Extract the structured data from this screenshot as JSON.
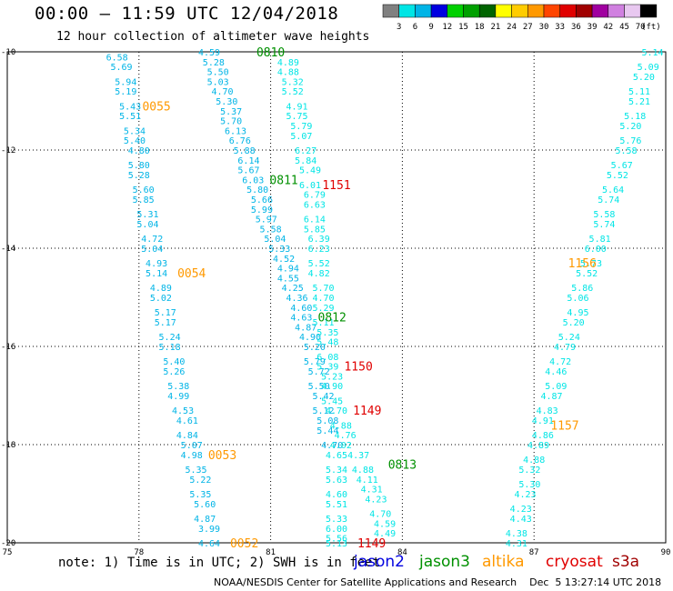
{
  "header": {
    "title": "00:00 – 11:59 UTC 12/04/2018",
    "subtitle": "12 hour collection of altimeter wave heights"
  },
  "colorbar": {
    "unit": "(ft)",
    "labels": [
      "3",
      "6",
      "9",
      "12",
      "15",
      "18",
      "21",
      "24",
      "27",
      "30",
      "33",
      "36",
      "39",
      "42",
      "45",
      "70"
    ],
    "colors": [
      "#808080",
      "#00e5e5",
      "#00b4e6",
      "#0000e0",
      "#00d000",
      "#00a000",
      "#006400",
      "#ffff00",
      "#ffcc00",
      "#ff9900",
      "#ff4500",
      "#e00000",
      "#a00000",
      "#a000a0",
      "#d080e0",
      "#e8c8f0",
      "#000000"
    ]
  },
  "footer": {
    "note": "note: 1) Time is in UTC; 2) SWH is in feet",
    "satellites": [
      {
        "name": "jason2",
        "color": "#0000e0"
      },
      {
        "name": "jason3",
        "color": "#009000"
      },
      {
        "name": "altika",
        "color": "#ff9900"
      },
      {
        "name": "cryosat",
        "color": "#e00000"
      },
      {
        "name": "s3a",
        "color": "#a00000"
      }
    ],
    "credit": "NOAA/NESDIS Center for Satellite Applications and Research    Dec  5 13:27:14 UTC 2018"
  },
  "chart_data": {
    "type": "scatter",
    "title": "00:00 – 11:59 UTC 12/04/2018",
    "subtitle": "12 hour collection of altimeter wave heights",
    "x_ticks": [
      75,
      78,
      81,
      84,
      87,
      90
    ],
    "y_ticks": [
      -10,
      -12,
      -14,
      -16,
      -18,
      -20
    ],
    "xlim": [
      75,
      90
    ],
    "ylim": [
      -20,
      -10
    ],
    "grid": true,
    "value_unit": "ft",
    "pass_labels": [
      {
        "text": "0810",
        "color": "#009000",
        "x": 81.0,
        "y": -10.0
      },
      {
        "text": "0055",
        "color": "#ff9900",
        "x": 78.4,
        "y": -11.1
      },
      {
        "text": "0811",
        "color": "#009000",
        "x": 81.3,
        "y": -12.6
      },
      {
        "text": "1151",
        "color": "#e00000",
        "x": 82.5,
        "y": -12.7
      },
      {
        "text": "1156",
        "color": "#ff9900",
        "x": 88.1,
        "y": -14.3
      },
      {
        "text": "0054",
        "color": "#ff9900",
        "x": 79.2,
        "y": -14.5
      },
      {
        "text": "0812",
        "color": "#009000",
        "x": 82.4,
        "y": -15.4
      },
      {
        "text": "1150",
        "color": "#e00000",
        "x": 83.0,
        "y": -16.4
      },
      {
        "text": "1149",
        "color": "#e00000",
        "x": 83.2,
        "y": -17.3
      },
      {
        "text": "1157",
        "color": "#ff9900",
        "x": 87.7,
        "y": -17.6
      },
      {
        "text": "0053",
        "color": "#ff9900",
        "x": 79.9,
        "y": -18.2
      },
      {
        "text": "0813",
        "color": "#009000",
        "x": 84.0,
        "y": -18.4
      },
      {
        "text": "0052",
        "color": "#ff9900",
        "x": 80.4,
        "y": -20.0
      },
      {
        "text": "1149",
        "color": "#e00000",
        "x": 83.3,
        "y": -20.0
      }
    ],
    "series": [
      {
        "color": "#00b4e6",
        "points": [
          [
            77.5,
            -10.1,
            "6.58"
          ],
          [
            77.6,
            -10.3,
            "5.69"
          ],
          [
            77.7,
            -10.6,
            "5.94"
          ],
          [
            77.7,
            -10.8,
            "5.19"
          ],
          [
            77.8,
            -11.1,
            "5.43"
          ],
          [
            77.8,
            -11.3,
            "5.51"
          ],
          [
            77.9,
            -11.6,
            "5.34"
          ],
          [
            77.9,
            -11.8,
            "5.40"
          ],
          [
            78.0,
            -12.0,
            "4.80"
          ],
          [
            78.0,
            -12.3,
            "5.80"
          ],
          [
            78.0,
            -12.5,
            "5.28"
          ],
          [
            78.1,
            -12.8,
            "5.60"
          ],
          [
            78.1,
            -13.0,
            "5.85"
          ],
          [
            78.2,
            -13.3,
            "5.31"
          ],
          [
            78.2,
            -13.5,
            "5.04"
          ],
          [
            78.3,
            -13.8,
            "4.72"
          ],
          [
            78.3,
            -14.0,
            "5.04"
          ],
          [
            78.4,
            -14.3,
            "4.93"
          ],
          [
            78.4,
            -14.5,
            "5.14"
          ],
          [
            78.5,
            -14.8,
            "4.89"
          ],
          [
            78.5,
            -15.0,
            "5.02"
          ],
          [
            78.6,
            -15.3,
            "5.17"
          ],
          [
            78.6,
            -15.5,
            "5.17"
          ],
          [
            78.7,
            -15.8,
            "5.24"
          ],
          [
            78.7,
            -16.0,
            "5.18"
          ],
          [
            78.8,
            -16.3,
            "5.40"
          ],
          [
            78.8,
            -16.5,
            "5.26"
          ],
          [
            78.9,
            -16.8,
            "5.38"
          ],
          [
            78.9,
            -17.0,
            "4.99"
          ],
          [
            79.0,
            -17.3,
            "4.53"
          ],
          [
            79.1,
            -17.5,
            "4.61"
          ],
          [
            79.1,
            -17.8,
            "4.84"
          ],
          [
            79.2,
            -18.0,
            "5.07"
          ],
          [
            79.2,
            -18.2,
            "4.98"
          ],
          [
            79.3,
            -18.5,
            "5.35"
          ],
          [
            79.4,
            -18.7,
            "5.22"
          ],
          [
            79.4,
            -19.0,
            "5.35"
          ],
          [
            79.5,
            -19.2,
            "5.60"
          ],
          [
            79.5,
            -19.5,
            "4.87"
          ],
          [
            79.6,
            -19.7,
            "3.99"
          ],
          [
            79.6,
            -20.0,
            "4.64"
          ]
        ]
      },
      {
        "color": "#00b4e6",
        "points": [
          [
            79.6,
            -10.0,
            "4.59"
          ],
          [
            79.7,
            -10.2,
            "5.28"
          ],
          [
            79.8,
            -10.4,
            "5.50"
          ],
          [
            79.8,
            -10.6,
            "5.03"
          ],
          [
            79.9,
            -10.8,
            "4.70"
          ],
          [
            80.0,
            -11.0,
            "5.30"
          ],
          [
            80.1,
            -11.2,
            "5.37"
          ],
          [
            80.1,
            -11.4,
            "5.70"
          ],
          [
            80.2,
            -11.6,
            "6.13"
          ],
          [
            80.3,
            -11.8,
            "6.76"
          ],
          [
            80.4,
            -12.0,
            "5.88"
          ],
          [
            80.5,
            -12.2,
            "6.14"
          ],
          [
            80.5,
            -12.4,
            "5.67"
          ],
          [
            80.6,
            -12.6,
            "6.03"
          ],
          [
            80.7,
            -12.8,
            "5.80"
          ],
          [
            80.8,
            -13.0,
            "5.66"
          ],
          [
            80.8,
            -13.2,
            "5.99"
          ],
          [
            80.9,
            -13.4,
            "5.97"
          ],
          [
            81.0,
            -13.6,
            "5.58"
          ],
          [
            81.1,
            -13.8,
            "5.04"
          ],
          [
            81.2,
            -14.0,
            "5.33"
          ],
          [
            81.3,
            -14.2,
            "4.52"
          ],
          [
            81.4,
            -14.4,
            "4.94"
          ],
          [
            81.4,
            -14.6,
            "4.55"
          ],
          [
            81.5,
            -14.8,
            "4.25"
          ],
          [
            81.6,
            -15.0,
            "4.36"
          ],
          [
            81.7,
            -15.2,
            "4.60"
          ],
          [
            81.7,
            -15.4,
            "4.63"
          ],
          [
            81.8,
            -15.6,
            "4.87"
          ],
          [
            81.9,
            -15.8,
            "4.90"
          ],
          [
            82.0,
            -16.0,
            "5.20"
          ],
          [
            82.0,
            -16.3,
            "5.79"
          ],
          [
            82.1,
            -16.5,
            "5.72"
          ],
          [
            82.1,
            -16.8,
            "5.50"
          ],
          [
            82.2,
            -17.0,
            "5.42"
          ],
          [
            82.2,
            -17.3,
            "5.12"
          ],
          [
            82.3,
            -17.5,
            "5.08"
          ],
          [
            82.3,
            -17.7,
            "5.44"
          ],
          [
            82.4,
            -18.0,
            "4.70"
          ]
        ]
      },
      {
        "color": "#00e5e5",
        "points": [
          [
            81.4,
            -10.2,
            "4.89"
          ],
          [
            81.4,
            -10.4,
            "4.88"
          ],
          [
            81.5,
            -10.6,
            "5.32"
          ],
          [
            81.5,
            -10.8,
            "5.52"
          ],
          [
            81.6,
            -11.1,
            "4.91"
          ],
          [
            81.6,
            -11.3,
            "5.75"
          ],
          [
            81.7,
            -11.5,
            "5.79"
          ],
          [
            81.7,
            -11.7,
            "5.07"
          ],
          [
            81.8,
            -12.0,
            "6.27"
          ],
          [
            81.8,
            -12.2,
            "5.84"
          ],
          [
            81.9,
            -12.4,
            "5.49"
          ],
          [
            81.9,
            -12.7,
            "6.01"
          ],
          [
            82.0,
            -12.9,
            "6.79"
          ],
          [
            82.0,
            -13.1,
            "6.63"
          ],
          [
            82.0,
            -13.4,
            "6.14"
          ],
          [
            82.0,
            -13.6,
            "5.85"
          ],
          [
            82.1,
            -13.8,
            "6.39"
          ],
          [
            82.1,
            -14.0,
            "6.23"
          ],
          [
            82.1,
            -14.3,
            "5.52"
          ],
          [
            82.1,
            -14.5,
            "4.82"
          ],
          [
            82.2,
            -14.8,
            "5.70"
          ],
          [
            82.2,
            -15.0,
            "4.70"
          ],
          [
            82.2,
            -15.2,
            "5.29"
          ],
          [
            82.2,
            -15.5,
            "5.11"
          ],
          [
            82.3,
            -15.7,
            "5.35"
          ],
          [
            82.3,
            -15.9,
            "5.48"
          ],
          [
            82.3,
            -16.2,
            "6.08"
          ],
          [
            82.3,
            -16.4,
            "5.39"
          ],
          [
            82.4,
            -16.6,
            "5.23"
          ],
          [
            82.4,
            -16.8,
            "4.90"
          ],
          [
            82.4,
            -17.1,
            "5.45"
          ],
          [
            82.5,
            -17.3,
            "4.70"
          ],
          [
            82.6,
            -17.6,
            "4.88"
          ],
          [
            82.7,
            -17.8,
            "4.76"
          ],
          [
            82.6,
            -18.0,
            "4.02"
          ],
          [
            82.5,
            -18.2,
            "4.65"
          ],
          [
            82.5,
            -18.5,
            "5.34"
          ],
          [
            82.5,
            -18.7,
            "5.63"
          ],
          [
            82.5,
            -19.0,
            "4.60"
          ],
          [
            82.5,
            -19.2,
            "5.51"
          ],
          [
            82.5,
            -19.5,
            "5.33"
          ],
          [
            82.5,
            -19.7,
            "6.00"
          ],
          [
            82.5,
            -19.9,
            "5.56"
          ],
          [
            82.5,
            -20.0,
            "5.13"
          ]
        ]
      },
      {
        "color": "#00e5e5",
        "points": [
          [
            83.0,
            -18.2,
            "4.37"
          ],
          [
            83.1,
            -18.5,
            "4.88"
          ],
          [
            83.2,
            -18.7,
            "4.11"
          ],
          [
            83.3,
            -18.9,
            "4.31"
          ],
          [
            83.4,
            -19.1,
            "4.23"
          ],
          [
            83.5,
            -19.4,
            "4.70"
          ],
          [
            83.6,
            -19.6,
            "4.59"
          ],
          [
            83.6,
            -19.8,
            "4.49"
          ]
        ]
      },
      {
        "color": "#00e5e5",
        "points": [
          [
            89.7,
            -10.0,
            "5.14"
          ],
          [
            89.6,
            -10.3,
            "5.09"
          ],
          [
            89.5,
            -10.5,
            "5.20"
          ],
          [
            89.4,
            -10.8,
            "5.11"
          ],
          [
            89.4,
            -11.0,
            "5.21"
          ],
          [
            89.3,
            -11.3,
            "5.18"
          ],
          [
            89.2,
            -11.5,
            "5.20"
          ],
          [
            89.2,
            -11.8,
            "5.76"
          ],
          [
            89.1,
            -12.0,
            "5.58"
          ],
          [
            89.0,
            -12.3,
            "5.67"
          ],
          [
            88.9,
            -12.5,
            "5.52"
          ],
          [
            88.8,
            -12.8,
            "5.64"
          ],
          [
            88.7,
            -13.0,
            "5.74"
          ],
          [
            88.6,
            -13.3,
            "5.58"
          ],
          [
            88.6,
            -13.5,
            "5.74"
          ],
          [
            88.5,
            -13.8,
            "5.81"
          ],
          [
            88.4,
            -14.0,
            "6.00"
          ],
          [
            88.3,
            -14.3,
            "5.73"
          ],
          [
            88.2,
            -14.5,
            "5.52"
          ],
          [
            88.1,
            -14.8,
            "5.86"
          ],
          [
            88.0,
            -15.0,
            "5.06"
          ],
          [
            88.0,
            -15.3,
            "4.95"
          ],
          [
            87.9,
            -15.5,
            "5.20"
          ],
          [
            87.8,
            -15.8,
            "5.24"
          ],
          [
            87.7,
            -16.0,
            "4.79"
          ],
          [
            87.6,
            -16.3,
            "4.72"
          ],
          [
            87.5,
            -16.5,
            "4.46"
          ],
          [
            87.5,
            -16.8,
            "5.09"
          ],
          [
            87.4,
            -17.0,
            "4.87"
          ],
          [
            87.3,
            -17.3,
            "4.83"
          ],
          [
            87.2,
            -17.5,
            "4.91"
          ],
          [
            87.2,
            -17.8,
            "4.86"
          ],
          [
            87.1,
            -18.0,
            "4.89"
          ],
          [
            87.0,
            -18.3,
            "4.88"
          ],
          [
            86.9,
            -18.5,
            "5.32"
          ],
          [
            86.9,
            -18.8,
            "5.30"
          ],
          [
            86.8,
            -19.0,
            "4.23"
          ],
          [
            86.7,
            -19.3,
            "4.23"
          ],
          [
            86.7,
            -19.5,
            "4.43"
          ],
          [
            86.6,
            -19.8,
            "4.38"
          ],
          [
            86.6,
            -20.0,
            "4.31"
          ]
        ]
      }
    ]
  }
}
